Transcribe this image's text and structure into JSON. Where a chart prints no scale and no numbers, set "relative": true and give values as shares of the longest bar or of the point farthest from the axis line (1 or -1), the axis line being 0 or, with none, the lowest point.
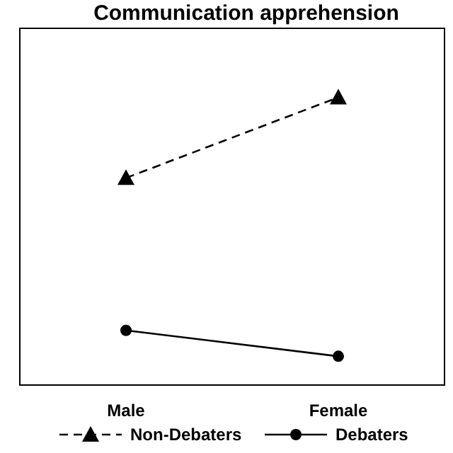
{
  "chart_data": {
    "type": "line",
    "title": "Communication apprehension",
    "relative": true,
    "categories": [
      "Male",
      "Female"
    ],
    "legend": "bottom",
    "series": [
      {
        "name": "Non-Debaters",
        "color": "#000000",
        "values": [
          0.72,
          1
        ],
        "marker": "triangle",
        "line_style": "dashed"
      },
      {
        "name": "Debaters",
        "color": "#000000",
        "values": [
          0.19,
          0.1
        ],
        "marker": "circle",
        "line_style": "solid"
      }
    ]
  }
}
